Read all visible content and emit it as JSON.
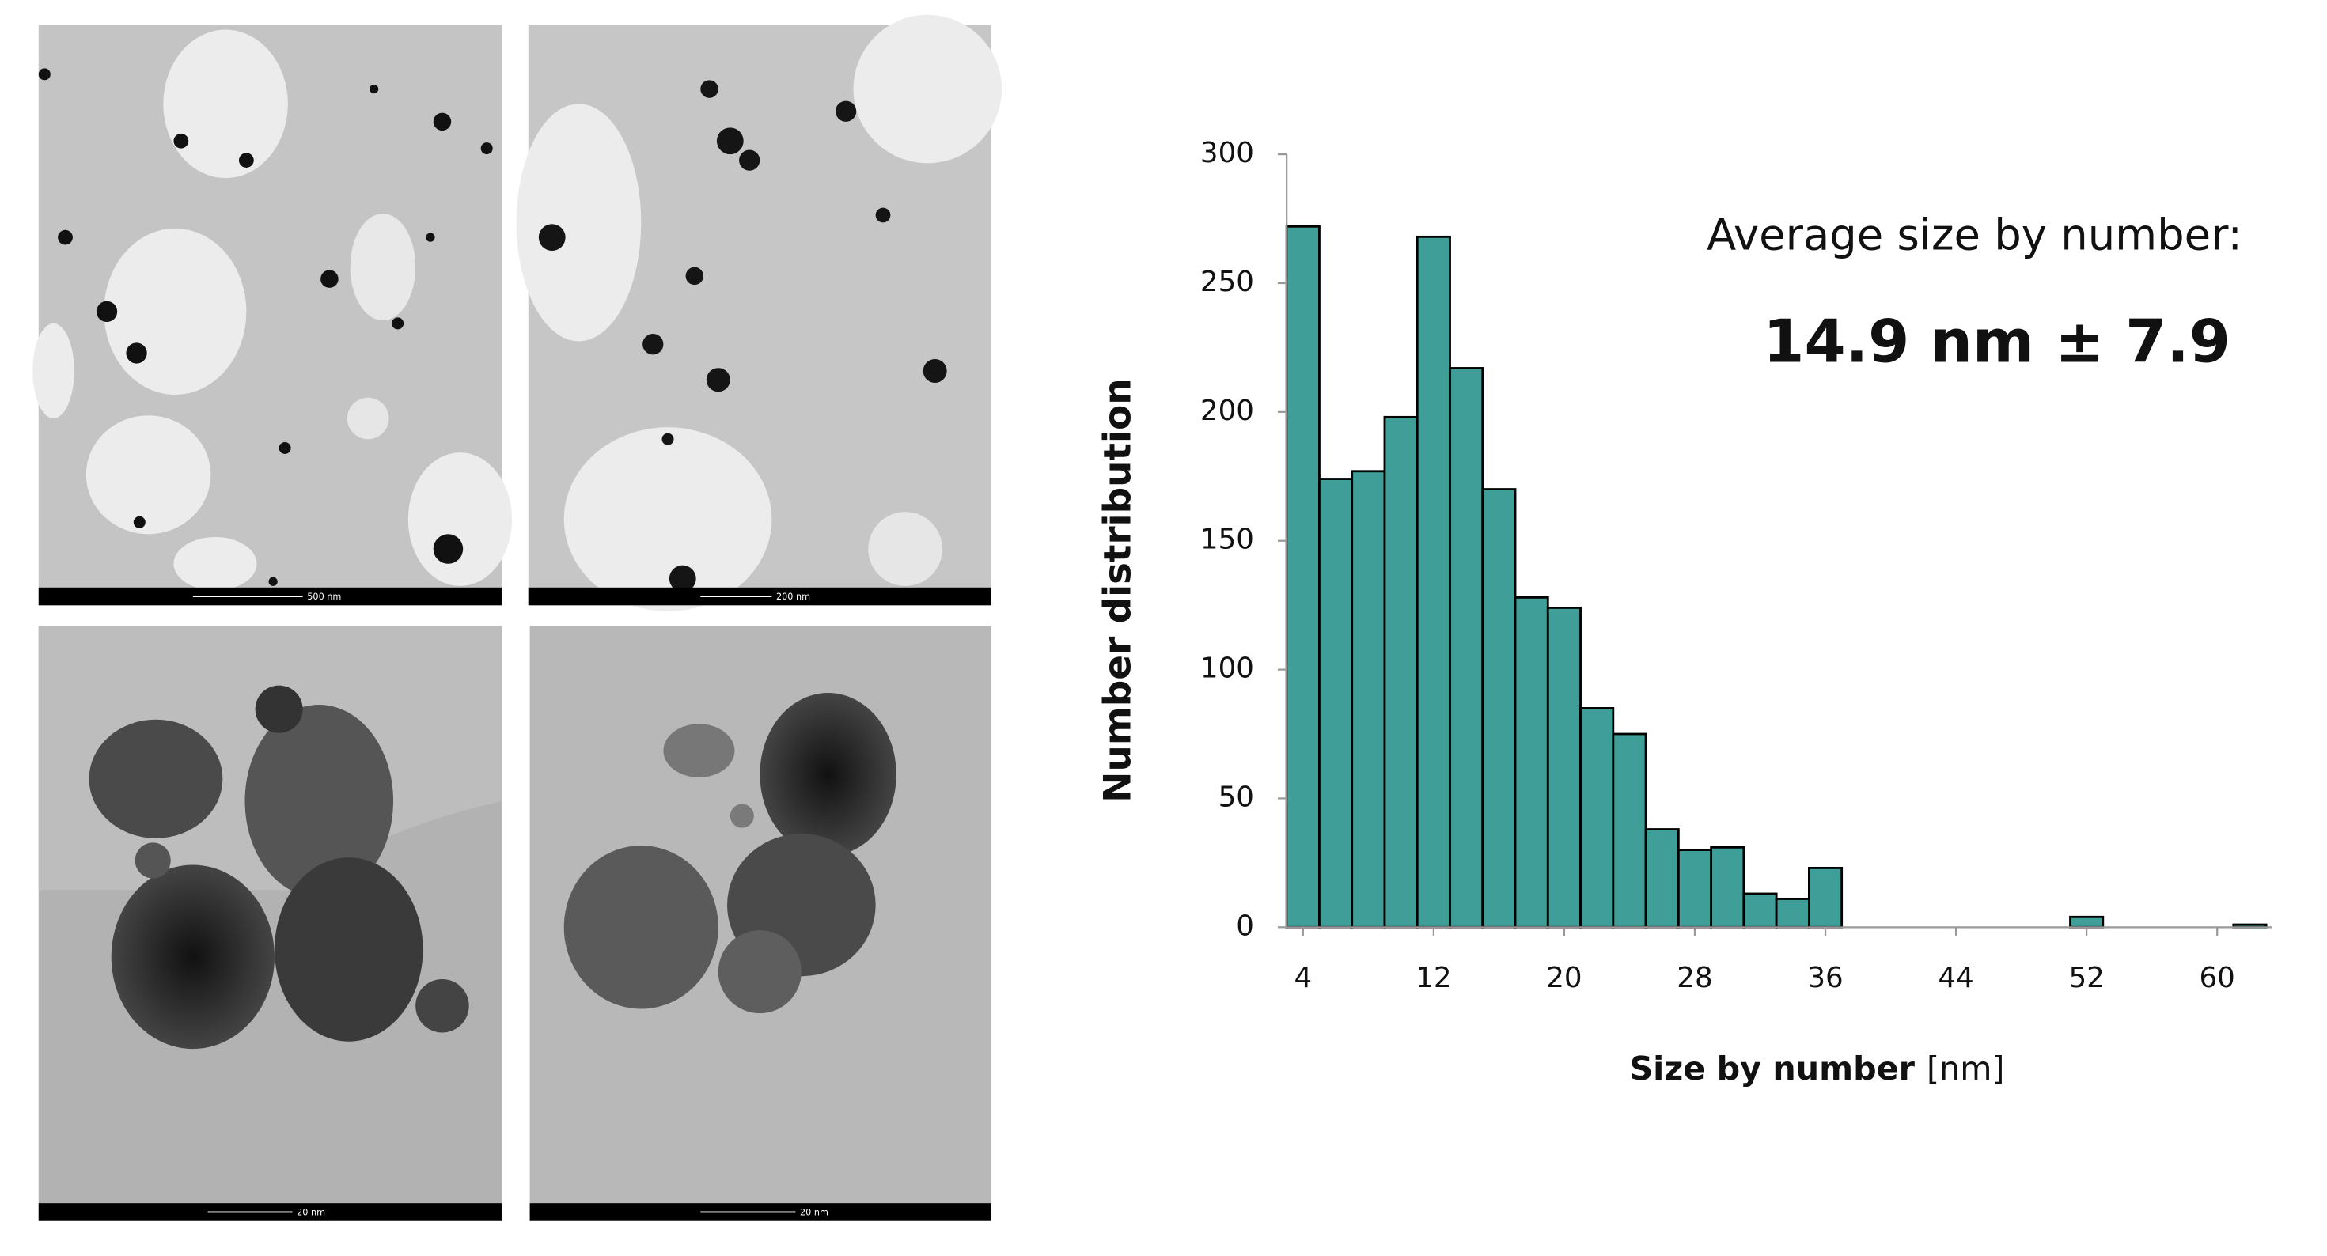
{
  "images": [
    {
      "scale_label": "500 nm"
    },
    {
      "scale_label": "200 nm"
    },
    {
      "scale_label": "20 nm"
    },
    {
      "scale_label": "20 nm"
    }
  ],
  "chart_data": {
    "type": "histogram",
    "ylabel": "Number distribution",
    "xlabel": "Size by number",
    "xlabel_unit": "[nm]",
    "annotations": [
      "Average size by number:",
      "14.9 nm ± 7.9"
    ],
    "bins": [
      3,
      5,
      7,
      9,
      11,
      13,
      15,
      17,
      19,
      21,
      23,
      25,
      27,
      29,
      31,
      33,
      35,
      37,
      39,
      41,
      43,
      45,
      47,
      49,
      51,
      53,
      55,
      57,
      59,
      61,
      63
    ],
    "counts": [
      272,
      174,
      177,
      198,
      268,
      217,
      170,
      128,
      124,
      85,
      75,
      38,
      30,
      31,
      13,
      11,
      23,
      0,
      0,
      0,
      0,
      0,
      0,
      0,
      4,
      0,
      0,
      0,
      0,
      1
    ],
    "color": "#3f9e98",
    "xlim": [
      3,
      63
    ],
    "ylim": [
      0,
      300
    ],
    "xticks": [
      4,
      12,
      20,
      28,
      36,
      44,
      52,
      60
    ],
    "yticks": [
      0,
      50,
      100,
      150,
      200,
      250,
      300
    ],
    "grid": false
  }
}
